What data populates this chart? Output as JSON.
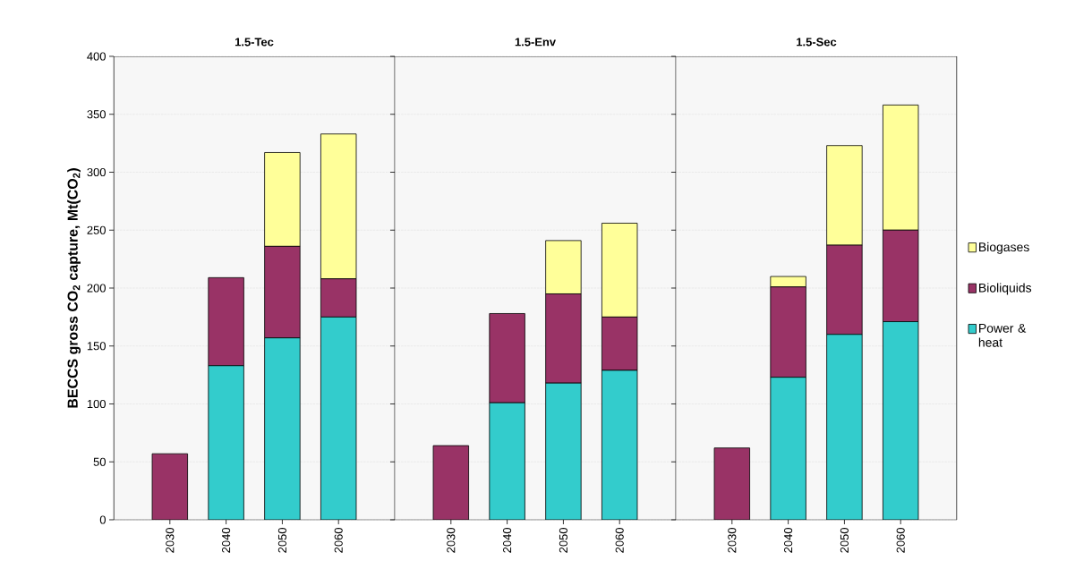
{
  "chart_data": [
    {
      "type": "bar",
      "stacked": true,
      "title": "1.5-Tec",
      "ylabel": "BECCS gross CO$_{2}$ capture, Mt(CO$_{2}$)",
      "categories": [
        "2030",
        "2040",
        "2050",
        "2060"
      ],
      "ylim": [
        0,
        400
      ],
      "yticks": [
        0,
        50,
        100,
        150,
        200,
        250,
        300,
        350,
        400
      ],
      "grid": "y",
      "series": [
        {
          "color": "#33cccc",
          "values": [
            0,
            133,
            157,
            175
          ]
        },
        {
          "color": "#993366",
          "values": [
            57,
            76,
            79,
            33
          ]
        },
        {
          "color": "#ffff99",
          "values": [
            0,
            0,
            81,
            125
          ]
        }
      ]
    },
    {
      "type": "bar",
      "stacked": true,
      "title": "1.5-Env",
      "categories": [
        "2030",
        "2040",
        "2050",
        "2060"
      ],
      "ylim": [
        0,
        400
      ],
      "tick_labels": "x",
      "grid": "y",
      "series": [
        {
          "color": "#33cccc",
          "values": [
            0,
            101,
            118,
            129
          ]
        },
        {
          "color": "#993366",
          "values": [
            64,
            77,
            77,
            46
          ]
        },
        {
          "color": "#ffff99",
          "values": [
            0,
            0,
            46,
            81
          ]
        }
      ]
    },
    {
      "type": "bar",
      "stacked": true,
      "title": "1.5-Sec",
      "categories": [
        "2030",
        "2040",
        "2050",
        "2060"
      ],
      "ylim": [
        0,
        400
      ],
      "tick_labels": "x",
      "grid": "y",
      "legend": "right",
      "series": [
        {
          "name": "Power & heat",
          "color": "#33cccc",
          "values": [
            0,
            123,
            160,
            171
          ]
        },
        {
          "name": "Bioliquids",
          "color": "#993366",
          "values": [
            62,
            78,
            77,
            79
          ]
        },
        {
          "name": "Biogases",
          "color": "#ffff99",
          "values": [
            0,
            9,
            86,
            108
          ]
        }
      ]
    }
  ]
}
